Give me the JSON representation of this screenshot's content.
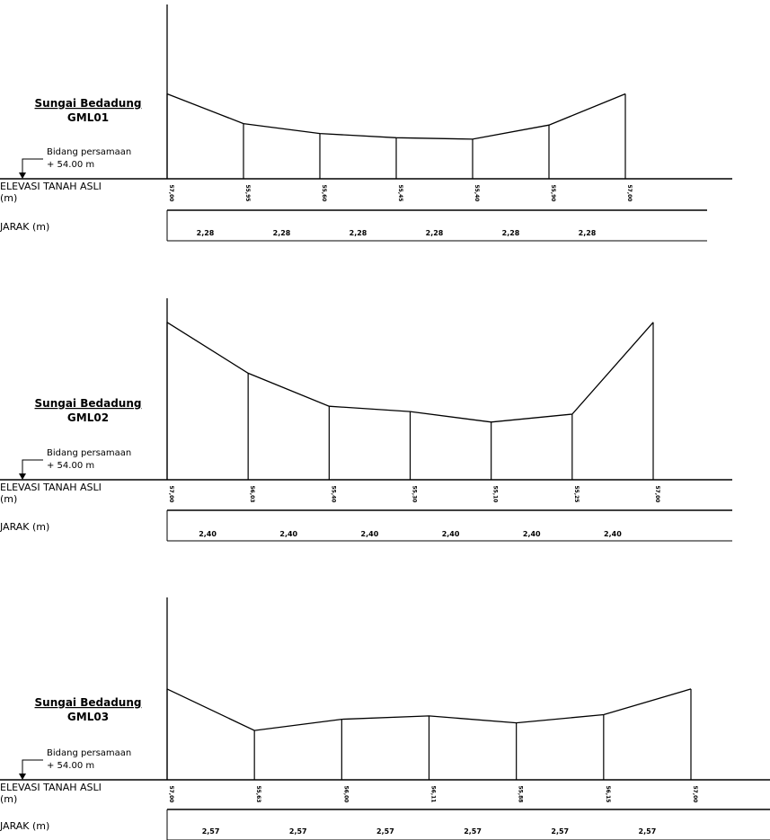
{
  "sections": [
    {
      "name": "Sungai Bedadung",
      "code": "GML01",
      "datum_label": "Bidang persamaan",
      "datum_value": "+ 54.00  m",
      "elevation_row_label": "ELEVASI TANAH ASLI",
      "elevation_row_unit": "(m)",
      "distance_row_label": "JARAK (m)",
      "elevation_labels": [
        "57,00",
        "55,95",
        "55,60",
        "55,45",
        "55,40",
        "55,90",
        "57,00"
      ],
      "elevations": [
        57.0,
        55.95,
        55.6,
        55.45,
        55.4,
        55.9,
        57.0
      ],
      "distance_labels": [
        "2,28",
        "2,28",
        "2,28",
        "2,28",
        "2,28",
        "2,28"
      ],
      "distances": [
        2.28,
        2.28,
        2.28,
        2.28,
        2.28,
        2.28
      ]
    },
    {
      "name": "Sungai Bedadung",
      "code": "GML02",
      "datum_label": "Bidang persamaan",
      "datum_value": "+ 54.00  m",
      "elevation_row_label": "ELEVASI TANAH ASLI",
      "elevation_row_unit": "(m)",
      "distance_row_label": "JARAK (m)",
      "elevation_labels": [
        "57,00",
        "56,03",
        "55,40",
        "55,30",
        "55,10",
        "55,25",
        "57,00"
      ],
      "elevations": [
        57.0,
        56.03,
        55.4,
        55.3,
        55.1,
        55.25,
        57.0
      ],
      "distance_labels": [
        "2,40",
        "2,40",
        "2,40",
        "2,40",
        "2,40",
        "2,40"
      ],
      "distances": [
        2.4,
        2.4,
        2.4,
        2.4,
        2.4,
        2.4
      ]
    },
    {
      "name": "Sungai Bedadung",
      "code": "GML03",
      "datum_label": "Bidang persamaan",
      "datum_value": "+ 54.00  m",
      "elevation_row_label": "ELEVASI TANAH ASLI",
      "elevation_row_unit": "(m)",
      "distance_row_label": "JARAK (m)",
      "elevation_labels": [
        "57,00",
        "55,63",
        "56,00",
        "56,11",
        "55,88",
        "56,15",
        "57,00"
      ],
      "elevations": [
        57.0,
        55.63,
        56.0,
        56.11,
        55.88,
        56.15,
        57.0
      ],
      "distance_labels": [
        "2,57",
        "2,57",
        "2,57",
        "2,57",
        "2,57",
        "2,57"
      ],
      "distances": [
        2.57,
        2.57,
        2.57,
        2.57,
        2.57,
        2.57
      ]
    }
  ]
}
